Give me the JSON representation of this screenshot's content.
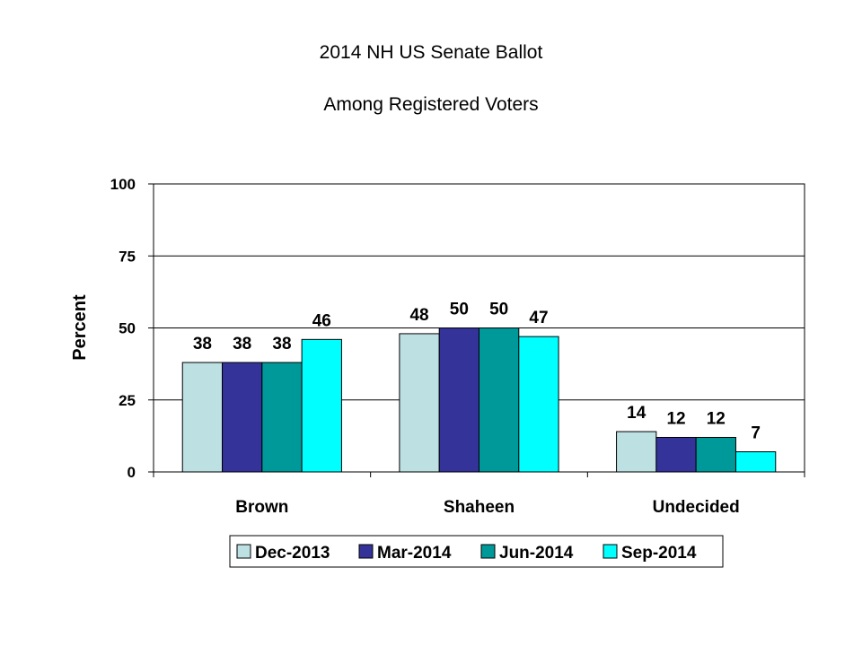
{
  "chart_data": {
    "type": "bar",
    "title": "2014 NH US Senate Ballot",
    "subtitle": "Among Registered Voters",
    "ylabel": "Percent",
    "xlabel": "",
    "ylim": [
      0,
      100
    ],
    "yticks": [
      0,
      25,
      50,
      75,
      100
    ],
    "grid": true,
    "legend_position": "bottom",
    "categories": [
      "Brown",
      "Shaheen",
      "Undecided"
    ],
    "series": [
      {
        "name": "Dec-2013",
        "color": "#bde0e2",
        "values": [
          38,
          48,
          14
        ]
      },
      {
        "name": "Mar-2014",
        "color": "#333399",
        "values": [
          38,
          50,
          12
        ]
      },
      {
        "name": "Jun-2014",
        "color": "#009999",
        "values": [
          38,
          50,
          12
        ]
      },
      {
        "name": "Sep-2014",
        "color": "#00ffff",
        "values": [
          46,
          47,
          7
        ]
      }
    ]
  }
}
